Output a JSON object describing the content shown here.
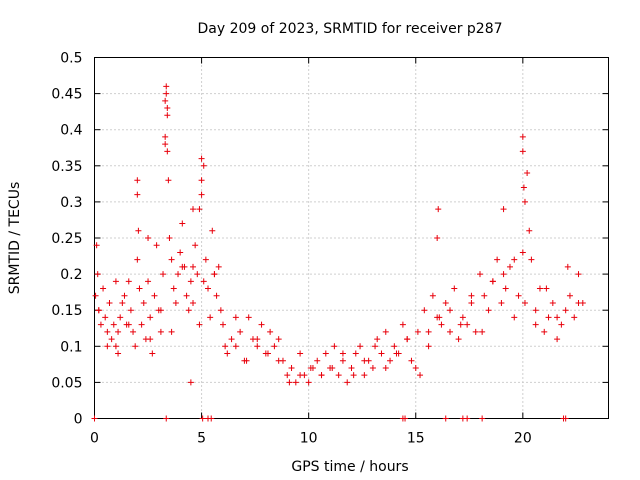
{
  "chart_data": {
    "type": "scatter",
    "title": "Day 209 of 2023, SRMTID for receiver p287",
    "xlabel": "GPS time / hours",
    "ylabel": "SRMTID / TECUs",
    "xlim": [
      0,
      24
    ],
    "ylim": [
      0,
      0.5
    ],
    "xticks": [
      0,
      5,
      10,
      15,
      20
    ],
    "xtick_labels": [
      "0",
      "5",
      "10",
      "15",
      "20"
    ],
    "yticks": [
      0,
      0.05,
      0.1,
      0.15,
      0.2,
      0.25,
      0.3,
      0.35,
      0.4,
      0.45,
      0.5
    ],
    "ytick_labels": [
      "0",
      "0.05",
      "0.1",
      "0.15",
      "0.2",
      "0.25",
      "0.3",
      "0.35",
      "0.4",
      "0.45",
      "0.5"
    ],
    "grid": true,
    "marker": "plus",
    "series": [
      {
        "name": "SRMTID",
        "color": "#e8000b",
        "x": [
          0.05,
          0.1,
          0.15,
          0.2,
          0.3,
          0.4,
          0.5,
          0.6,
          0.7,
          0.8,
          0.9,
          1.0,
          1.1,
          1.2,
          1.3,
          1.4,
          1.5,
          1.6,
          1.7,
          1.8,
          1.9,
          2.0,
          2.1,
          2.2,
          2.3,
          2.4,
          2.5,
          2.6,
          2.7,
          2.8,
          2.9,
          3.0,
          3.1,
          3.2,
          3.3,
          3.35,
          3.4,
          3.45,
          3.5,
          3.6,
          3.7,
          3.8,
          3.9,
          4.0,
          4.1,
          4.2,
          4.3,
          4.4,
          4.5,
          4.6,
          4.7,
          4.8,
          4.9,
          5.0,
          5.1,
          5.2,
          5.3,
          5.4,
          5.5,
          5.6,
          5.7,
          5.8,
          5.9,
          6.0,
          6.2,
          6.4,
          6.6,
          6.8,
          7.0,
          7.2,
          7.4,
          7.6,
          7.8,
          8.0,
          8.2,
          8.4,
          8.6,
          8.8,
          9.0,
          9.2,
          9.4,
          9.6,
          9.8,
          10.0,
          10.2,
          10.4,
          10.6,
          10.8,
          11.0,
          11.2,
          11.4,
          11.6,
          11.8,
          12.0,
          12.2,
          12.4,
          12.6,
          12.8,
          13.0,
          13.2,
          13.4,
          13.6,
          13.8,
          14.0,
          14.2,
          14.4,
          14.6,
          14.8,
          15.0,
          15.2,
          15.4,
          15.6,
          15.8,
          16.0,
          16.2,
          16.4,
          16.6,
          16.8,
          17.0,
          17.2,
          17.4,
          17.6,
          17.8,
          18.0,
          18.2,
          18.4,
          18.6,
          18.8,
          19.0,
          19.2,
          19.4,
          19.6,
          19.8,
          20.0,
          20.1,
          20.2,
          20.3,
          20.4,
          20.6,
          20.8,
          21.0,
          21.2,
          21.4,
          21.6,
          21.8,
          22.0,
          22.2,
          22.4,
          22.6,
          22.8,
          0.2,
          0.6,
          1.1,
          1.6,
          2.1,
          2.6,
          3.1,
          3.6,
          4.1,
          4.6,
          5.1,
          5.6,
          6.1,
          6.6,
          7.1,
          7.6,
          8.1,
          8.6,
          9.1,
          9.6,
          10.1,
          10.6,
          11.1,
          11.6,
          12.1,
          12.6,
          13.1,
          13.6,
          14.1,
          14.6,
          15.1,
          15.6,
          16.1,
          16.6,
          17.1,
          17.6,
          18.1,
          18.6,
          19.1,
          19.6,
          20.1,
          20.6,
          21.1,
          21.6,
          22.1,
          22.6,
          2.0,
          2.0,
          2.05,
          3.3,
          3.3,
          3.35,
          3.4,
          3.4,
          4.9,
          5.0,
          5.0,
          16.0,
          16.05,
          19.1,
          20.0,
          20.0,
          20.05,
          4.5,
          4.6,
          2.5,
          1.0
        ],
        "y": [
          0.17,
          0.24,
          0.2,
          0.15,
          0.13,
          0.18,
          0.14,
          0.12,
          0.16,
          0.11,
          0.13,
          0.1,
          0.12,
          0.14,
          0.16,
          0.17,
          0.13,
          0.19,
          0.15,
          0.12,
          0.1,
          0.22,
          0.18,
          0.13,
          0.16,
          0.11,
          0.19,
          0.14,
          0.09,
          0.17,
          0.24,
          0.15,
          0.12,
          0.2,
          0.39,
          0.45,
          0.43,
          0.33,
          0.25,
          0.22,
          0.18,
          0.16,
          0.2,
          0.23,
          0.27,
          0.21,
          0.17,
          0.15,
          0.19,
          0.29,
          0.24,
          0.2,
          0.13,
          0.31,
          0.35,
          0.22,
          0.18,
          0.14,
          0.26,
          0.2,
          0.17,
          0.21,
          0.15,
          0.13,
          0.09,
          0.11,
          0.1,
          0.12,
          0.08,
          0.14,
          0.11,
          0.1,
          0.13,
          0.09,
          0.12,
          0.1,
          0.11,
          0.08,
          0.06,
          0.07,
          0.05,
          0.09,
          0.06,
          0.05,
          0.07,
          0.08,
          0.06,
          0.09,
          0.07,
          0.1,
          0.06,
          0.08,
          0.05,
          0.07,
          0.09,
          0.1,
          0.06,
          0.08,
          0.07,
          0.11,
          0.09,
          0.12,
          0.08,
          0.1,
          0.09,
          0.13,
          0.11,
          0.08,
          0.07,
          0.06,
          0.15,
          0.12,
          0.17,
          0.14,
          0.13,
          0.16,
          0.12,
          0.18,
          0.11,
          0.14,
          0.13,
          0.16,
          0.12,
          0.2,
          0.17,
          0.15,
          0.19,
          0.22,
          0.16,
          0.18,
          0.21,
          0.14,
          0.17,
          0.23,
          0.3,
          0.34,
          0.26,
          0.22,
          0.15,
          0.18,
          0.12,
          0.14,
          0.16,
          0.11,
          0.13,
          0.15,
          0.17,
          0.14,
          0.2,
          0.16,
          0.15,
          0.1,
          0.09,
          0.13,
          0.18,
          0.11,
          0.15,
          0.12,
          0.21,
          0.16,
          0.19,
          0.2,
          0.1,
          0.14,
          0.08,
          0.11,
          0.09,
          0.08,
          0.05,
          0.06,
          0.07,
          0.06,
          0.07,
          0.09,
          0.06,
          0.08,
          0.1,
          0.07,
          0.09,
          0.11,
          0.12,
          0.1,
          0.14,
          0.15,
          0.13,
          0.17,
          0.12,
          0.19,
          0.2,
          0.22,
          0.16,
          0.13,
          0.18,
          0.14,
          0.21,
          0.16,
          0.31,
          0.33,
          0.26,
          0.38,
          0.44,
          0.46,
          0.37,
          0.42,
          0.29,
          0.33,
          0.36,
          0.25,
          0.29,
          0.29,
          0.39,
          0.37,
          0.32,
          0.05,
          0.21,
          0.25,
          0.19
        ],
        "zeros_x": [
          0.0,
          3.35,
          5.05,
          5.3,
          5.45,
          14.4,
          14.5,
          16.4,
          17.2,
          17.4,
          18.1,
          21.9,
          22.0
        ]
      }
    ]
  }
}
